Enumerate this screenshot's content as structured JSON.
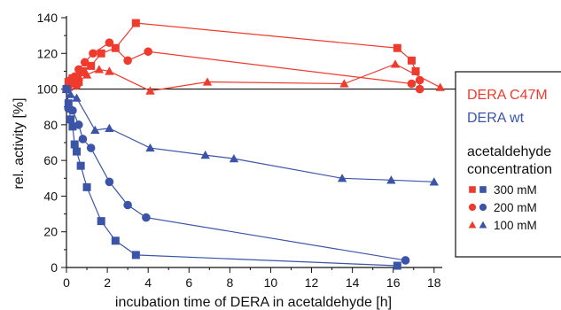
{
  "chart_data": {
    "type": "line",
    "title": "",
    "xlabel": "incubation time of DERA in acetaldehyde [h]",
    "ylabel": "rel. activity [%]",
    "xlim": [
      0,
      18.4
    ],
    "ylim": [
      0,
      140
    ],
    "xticks": [
      0,
      2,
      4,
      6,
      8,
      10,
      12,
      14,
      16,
      18
    ],
    "yticks": [
      0,
      20,
      40,
      60,
      80,
      100,
      120,
      140
    ],
    "reference_line_y": 100,
    "colors": {
      "c47m": "#ee3b2e",
      "wt": "#3b54a8"
    },
    "legend": {
      "placement": "right",
      "enzyme_labels": [
        "DERA C47M",
        "DERA wt"
      ],
      "concentration_heading_line1": "acetaldehyde",
      "concentration_heading_line2": "concentration",
      "concentration_entries": [
        {
          "marker": "square",
          "label": "300 mM"
        },
        {
          "marker": "circle",
          "label": "200 mM"
        },
        {
          "marker": "triangle",
          "label": "100 mM"
        }
      ]
    },
    "series": [
      {
        "enzyme": "DERA C47M",
        "concentration": "300 mM",
        "marker": "square",
        "color": "c47m",
        "points": [
          [
            0,
            100
          ],
          [
            0.1,
            104
          ],
          [
            0.3,
            106
          ],
          [
            0.6,
            104
          ],
          [
            0.8,
            110
          ],
          [
            1.2,
            113
          ],
          [
            1.7,
            120
          ],
          [
            2.4,
            123
          ],
          [
            3.4,
            137
          ],
          [
            16.2,
            123
          ],
          [
            16.9,
            116
          ],
          [
            17.1,
            110
          ]
        ]
      },
      {
        "enzyme": "DERA C47M",
        "concentration": "200 mM",
        "marker": "circle",
        "color": "c47m",
        "points": [
          [
            0,
            100
          ],
          [
            0.1,
            102
          ],
          [
            0.2,
            105
          ],
          [
            0.4,
            107
          ],
          [
            0.5,
            102
          ],
          [
            0.6,
            111
          ],
          [
            0.9,
            115
          ],
          [
            1.3,
            120
          ],
          [
            2.1,
            126
          ],
          [
            3.0,
            116
          ],
          [
            4.0,
            121
          ],
          [
            16.9,
            103
          ],
          [
            17.3,
            105
          ],
          [
            17.3,
            100
          ]
        ]
      },
      {
        "enzyme": "DERA C47M",
        "concentration": "100 mM",
        "marker": "triangle",
        "color": "c47m",
        "points": [
          [
            0,
            100
          ],
          [
            0.1,
            101
          ],
          [
            0.3,
            103
          ],
          [
            0.6,
            107
          ],
          [
            1.0,
            108
          ],
          [
            1.6,
            111
          ],
          [
            2.1,
            110
          ],
          [
            4.1,
            99
          ],
          [
            6.9,
            104
          ],
          [
            13.6,
            103
          ],
          [
            16.1,
            114
          ],
          [
            18.3,
            101
          ]
        ]
      },
      {
        "enzyme": "DERA wt",
        "concentration": "300 mM",
        "marker": "square",
        "color": "wt",
        "points": [
          [
            0,
            100
          ],
          [
            0.1,
            92
          ],
          [
            0.2,
            83
          ],
          [
            0.3,
            79
          ],
          [
            0.4,
            69
          ],
          [
            0.5,
            65
          ],
          [
            0.7,
            57
          ],
          [
            1.0,
            45
          ],
          [
            1.7,
            26
          ],
          [
            2.4,
            15
          ],
          [
            3.4,
            7
          ],
          [
            16.2,
            1
          ]
        ]
      },
      {
        "enzyme": "DERA wt",
        "concentration": "200 mM",
        "marker": "circle",
        "color": "wt",
        "points": [
          [
            0,
            100
          ],
          [
            0.1,
            89
          ],
          [
            0.3,
            88
          ],
          [
            0.6,
            80
          ],
          [
            0.8,
            72
          ],
          [
            1.2,
            67
          ],
          [
            2.1,
            48
          ],
          [
            3.0,
            35
          ],
          [
            3.9,
            28
          ],
          [
            16.6,
            4
          ]
        ]
      },
      {
        "enzyme": "DERA wt",
        "concentration": "100 mM",
        "marker": "triangle",
        "color": "wt",
        "points": [
          [
            0,
            100
          ],
          [
            0.2,
            97
          ],
          [
            0.5,
            95
          ],
          [
            1.4,
            77
          ],
          [
            2.1,
            78
          ],
          [
            4.1,
            67
          ],
          [
            6.8,
            63
          ],
          [
            8.2,
            61
          ],
          [
            13.5,
            50
          ],
          [
            15.9,
            49
          ],
          [
            18.0,
            48
          ]
        ]
      }
    ]
  }
}
